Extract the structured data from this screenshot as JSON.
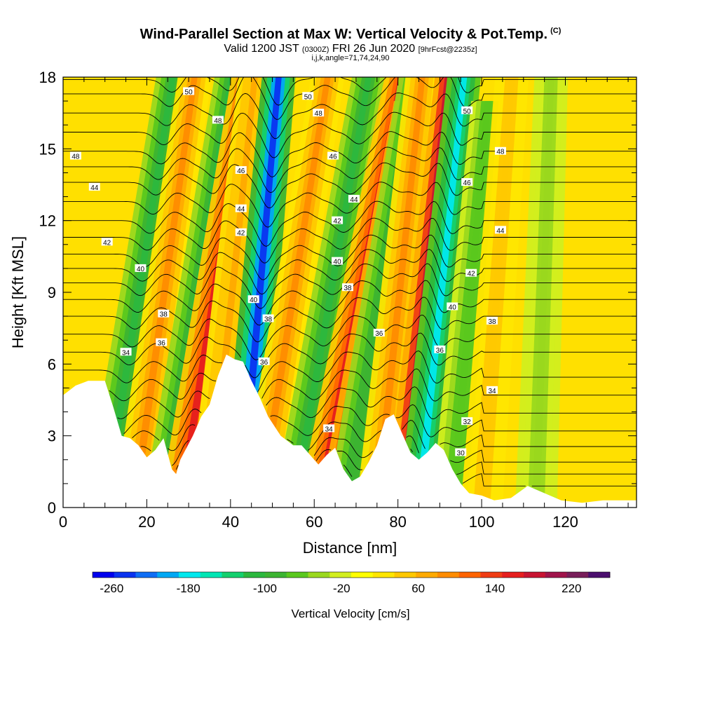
{
  "header": {
    "title": "Wind-Parallel Section at Max W: Vertical Velocity & Pot.Temp.",
    "copyright": "(C)",
    "subtitle_valid": "Valid 1200 JST",
    "subtitle_utc": "(0300Z)",
    "subtitle_date": "FRI 26 Jun 2020",
    "subtitle_fcst": "[9hrFcst@2235z]",
    "params": "i,j,k,angle=71,74,24,90"
  },
  "colors": {
    "background_field": "#ffe000",
    "terrain": "#ffffff",
    "contour": "#000000"
  },
  "chart_data": {
    "type": "heatmap",
    "title": "Wind-Parallel Section at Max W: Vertical Velocity & Pot.Temp.",
    "xlabel": "Distance [nm]",
    "ylabel": "Height [Kft MSL]",
    "xlim": [
      0,
      137
    ],
    "ylim": [
      0,
      18
    ],
    "x_ticks": [
      0,
      20,
      40,
      60,
      80,
      100,
      120
    ],
    "y_ticks": [
      0,
      3,
      6,
      9,
      12,
      15,
      18
    ],
    "grid": false,
    "colorbar": {
      "label": "Vertical Velocity [cm/s]",
      "placement": "bottom",
      "ticks": [
        -260,
        -180,
        -100,
        -20,
        60,
        140,
        220
      ],
      "colors": [
        "#0000ee",
        "#0a33f0",
        "#0f6ef5",
        "#00a8f5",
        "#00e8ee",
        "#00e6b4",
        "#14d06e",
        "#2cb83e",
        "#3cb432",
        "#5ac81e",
        "#9ad81e",
        "#d2ee1e",
        "#ffff00",
        "#ffe600",
        "#ffc800",
        "#ffaa00",
        "#ff8c00",
        "#ff6400",
        "#f03c14",
        "#e61e1e",
        "#c81432",
        "#a0144b",
        "#781e5a",
        "#4b0f6e"
      ]
    },
    "bands": [
      {
        "x": 10,
        "value": -120,
        "slant": 0.9,
        "top": 18
      },
      {
        "x": 17,
        "value": 80,
        "slant": 0.8,
        "top": 18
      },
      {
        "x": 24,
        "value": -120,
        "slant": 0.9,
        "top": 18
      },
      {
        "x": 28,
        "value": 150,
        "slant": 0.9,
        "top": 18
      },
      {
        "x": 35,
        "value": 60,
        "slant": 0.6,
        "top": 18
      },
      {
        "x": 42.5,
        "value": -240,
        "slant": 0.5,
        "top": 18
      },
      {
        "x": 47,
        "value": 80,
        "slant": 0.9,
        "top": 18
      },
      {
        "x": 55,
        "value": -110,
        "slant": 1.0,
        "top": 18
      },
      {
        "x": 61,
        "value": 150,
        "slant": 1.1,
        "top": 18
      },
      {
        "x": 66,
        "value": 180,
        "slant": 1.0,
        "top": 17
      },
      {
        "x": 68,
        "value": -100,
        "slant": 0.9,
        "top": 18
      },
      {
        "x": 75,
        "value": 90,
        "slant": 0.6,
        "top": 18
      },
      {
        "x": 82,
        "value": 220,
        "slant": 0.6,
        "top": 18
      },
      {
        "x": 85,
        "value": -170,
        "slant": 0.6,
        "top": 18
      },
      {
        "x": 93,
        "value": -70,
        "slant": 0.5,
        "top": 17
      },
      {
        "x": 100,
        "value": 50,
        "slant": 0.4,
        "top": 18
      },
      {
        "x": 113,
        "value": -50,
        "slant": 0.2,
        "top": 18
      }
    ],
    "terrain": [
      [
        0,
        4.7
      ],
      [
        3,
        5.1
      ],
      [
        6,
        5.3
      ],
      [
        10,
        5.3
      ],
      [
        12,
        4.2
      ],
      [
        14,
        3.0
      ],
      [
        16,
        2.9
      ],
      [
        18,
        2.6
      ],
      [
        20,
        2.1
      ],
      [
        22,
        2.4
      ],
      [
        24,
        2.9
      ],
      [
        26,
        1.6
      ],
      [
        27,
        1.4
      ],
      [
        28,
        2.0
      ],
      [
        31,
        3.0
      ],
      [
        33,
        3.8
      ],
      [
        35,
        4.3
      ],
      [
        37,
        5.5
      ],
      [
        39,
        6.4
      ],
      [
        41,
        6.2
      ],
      [
        43,
        6.1
      ],
      [
        45,
        5.3
      ],
      [
        47,
        4.6
      ],
      [
        49,
        3.8
      ],
      [
        52,
        3.0
      ],
      [
        55,
        2.6
      ],
      [
        57,
        2.6
      ],
      [
        59,
        2.2
      ],
      [
        61,
        1.8
      ],
      [
        63,
        2.2
      ],
      [
        65,
        2.5
      ],
      [
        67,
        1.6
      ],
      [
        69,
        1.1
      ],
      [
        71,
        1.3
      ],
      [
        73,
        1.9
      ],
      [
        75,
        2.6
      ],
      [
        77,
        3.7
      ],
      [
        79,
        3.9
      ],
      [
        81,
        3.1
      ],
      [
        83,
        2.3
      ],
      [
        85,
        2.0
      ],
      [
        87,
        2.3
      ],
      [
        89,
        2.7
      ],
      [
        91,
        2.4
      ],
      [
        93,
        1.6
      ],
      [
        95,
        1.0
      ],
      [
        97,
        0.6
      ],
      [
        100,
        0.5
      ],
      [
        103,
        0.3
      ],
      [
        107,
        0.4
      ],
      [
        111,
        0.9
      ],
      [
        115,
        0.6
      ],
      [
        119,
        0.3
      ],
      [
        124,
        0.2
      ],
      [
        129,
        0.3
      ],
      [
        134,
        0.3
      ],
      [
        137,
        0.3
      ]
    ],
    "theta_levels": [
      {
        "value": 30,
        "z": 2.2
      },
      {
        "value": 32,
        "z": 3.5
      },
      {
        "value": 34,
        "z": 5.0
      },
      {
        "value": 36,
        "z": 6.5
      },
      {
        "value": 38,
        "z": 8.0
      },
      {
        "value": 40,
        "z": 9.4
      },
      {
        "value": 42,
        "z": 10.6
      },
      {
        "value": 44,
        "z": 12.0
      },
      {
        "value": 46,
        "z": 13.6
      },
      {
        "value": 48,
        "z": 14.9
      },
      {
        "value": 50,
        "z": 16.5
      }
    ],
    "theta_labels": [
      {
        "text": "50",
        "x": 30,
        "y": 17.4
      },
      {
        "text": "48",
        "x": 37,
        "y": 16.2
      },
      {
        "text": "48",
        "x": 3,
        "y": 14.7
      },
      {
        "text": "44",
        "x": 7.5,
        "y": 13.4
      },
      {
        "text": "42",
        "x": 10.5,
        "y": 11.1
      },
      {
        "text": "40",
        "x": 18.5,
        "y": 10.0
      },
      {
        "text": "38",
        "x": 24,
        "y": 8.1
      },
      {
        "text": "36",
        "x": 23.5,
        "y": 6.9
      },
      {
        "text": "34",
        "x": 15,
        "y": 6.5
      },
      {
        "text": "46",
        "x": 42.5,
        "y": 14.1
      },
      {
        "text": "44",
        "x": 42.5,
        "y": 12.5
      },
      {
        "text": "42",
        "x": 42.5,
        "y": 11.5
      },
      {
        "text": "40",
        "x": 45.5,
        "y": 8.7
      },
      {
        "text": "38",
        "x": 49,
        "y": 7.9
      },
      {
        "text": "36",
        "x": 48,
        "y": 6.1
      },
      {
        "text": "50",
        "x": 58.5,
        "y": 17.2
      },
      {
        "text": "48",
        "x": 61,
        "y": 16.5
      },
      {
        "text": "46",
        "x": 64.5,
        "y": 14.7
      },
      {
        "text": "44",
        "x": 69.5,
        "y": 12.9
      },
      {
        "text": "42",
        "x": 65.5,
        "y": 12.0
      },
      {
        "text": "40",
        "x": 65.5,
        "y": 10.3
      },
      {
        "text": "38",
        "x": 68,
        "y": 9.2
      },
      {
        "text": "36",
        "x": 75.5,
        "y": 7.3
      },
      {
        "text": "34",
        "x": 63.5,
        "y": 3.3
      },
      {
        "text": "50",
        "x": 96.5,
        "y": 16.6
      },
      {
        "text": "48",
        "x": 104.5,
        "y": 14.9
      },
      {
        "text": "46",
        "x": 96.5,
        "y": 13.6
      },
      {
        "text": "44",
        "x": 104.5,
        "y": 11.6
      },
      {
        "text": "42",
        "x": 97.5,
        "y": 9.8
      },
      {
        "text": "40",
        "x": 93,
        "y": 8.4
      },
      {
        "text": "38",
        "x": 102.5,
        "y": 7.8
      },
      {
        "text": "36",
        "x": 90,
        "y": 6.6
      },
      {
        "text": "34",
        "x": 102.5,
        "y": 4.9
      },
      {
        "text": "32",
        "x": 96.5,
        "y": 3.6
      },
      {
        "text": "30",
        "x": 95,
        "y": 2.3
      }
    ]
  }
}
